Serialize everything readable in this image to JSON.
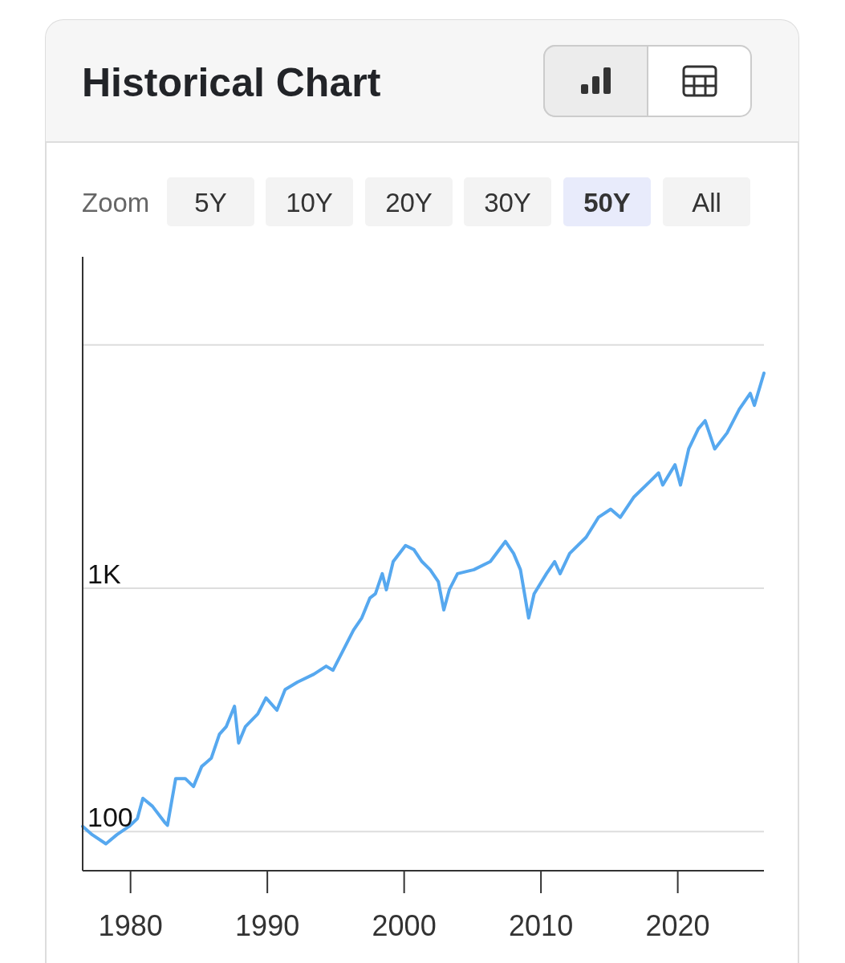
{
  "chart_data": {
    "type": "line",
    "title": "Historical Chart",
    "annotations": [
      "Zoom",
      "5Y",
      "10Y",
      "20Y",
      "30Y",
      "50Y",
      "All"
    ],
    "x": [
      1976.5,
      1977.2,
      1978.2,
      1979,
      1979.9,
      1980.5,
      1980.9,
      1981.6,
      1982.5,
      1982.7,
      1983.3,
      1984,
      1984.6,
      1985.2,
      1985.9,
      1986.5,
      1987,
      1987.6,
      1987.9,
      1988.4,
      1989.3,
      1989.9,
      1990.7,
      1991.3,
      1992.2,
      1993.4,
      1994.3,
      1994.8,
      1995.4,
      1996.3,
      1996.9,
      1997.5,
      1997.9,
      1998.4,
      1998.7,
      1999.2,
      2000.1,
      2000.7,
      2001.3,
      2001.9,
      2002.5,
      2002.9,
      2003.3,
      2003.9,
      2005.1,
      2006.3,
      2007.4,
      2008,
      2008.5,
      2009.1,
      2009.5,
      2010.4,
      2011,
      2011.4,
      2012.1,
      2013.3,
      2014.2,
      2015.1,
      2015.8,
      2016.8,
      2018,
      2018.6,
      2018.9,
      2019.8,
      2020.2,
      2020.8,
      2021.5,
      2022,
      2022.7,
      2023.6,
      2024.5,
      2025.3,
      2025.6,
      2026.3
    ],
    "series": [
      {
        "color": "#56a8ef",
        "values": [
          105,
          97,
          89,
          97,
          105,
          113,
          137,
          127,
          109,
          106,
          165,
          165,
          153,
          185,
          200,
          251,
          270,
          327,
          231,
          270,
          304,
          354,
          315,
          383,
          411,
          443,
          478,
          460,
          536,
          673,
          754,
          912,
          948,
          1147,
          985,
          1286,
          1497,
          1442,
          1286,
          1191,
          1062,
          814,
          985,
          1147,
          1191,
          1286,
          1556,
          1389,
          1191,
          754,
          948,
          1147,
          1286,
          1147,
          1389,
          1618,
          1954,
          2111,
          1954,
          2371,
          2757,
          2976,
          2654,
          3214,
          2654,
          3733,
          4517,
          4880,
          3733,
          4340,
          5440,
          6315,
          5640,
          7650
        ]
      }
    ],
    "xlim": [
      1976.5,
      2026.3
    ],
    "xticks": [
      1980,
      1990,
      2000,
      2010,
      2020
    ],
    "ylim": [
      69,
      23000
    ],
    "log": true,
    "yticks": [
      {
        "value": 100,
        "label": "100"
      },
      {
        "value": 1000,
        "label": "1K"
      },
      {
        "value": 10000,
        "label": null
      }
    ],
    "grid": "y",
    "marker": "none",
    "line_style": "solid"
  }
}
